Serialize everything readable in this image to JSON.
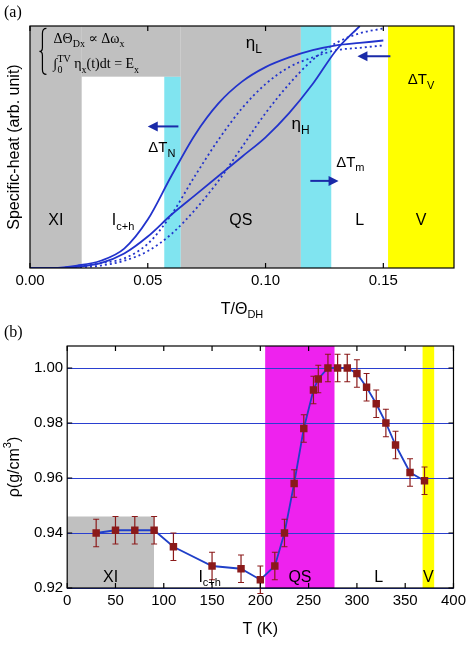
{
  "chart_data": [
    {
      "type": "line",
      "panel": "(a)",
      "x_label": [
        {
          "t": "T/Θ"
        },
        {
          "sub": "DH"
        }
      ],
      "y_label": [
        {
          "t": "Specific-heat (arb. unit)"
        }
      ],
      "xlim": [
        0,
        0.18
      ],
      "xticks": [
        {
          "value": 0,
          "label": "0.00"
        },
        {
          "value": 0.05,
          "label": "0.05"
        },
        {
          "value": 0.1,
          "label": "0.10"
        },
        {
          "value": 0.15,
          "label": "0.15"
        }
      ],
      "ylim": [
        0,
        1
      ],
      "tick_labels": "x",
      "grid": false,
      "bands": [
        {
          "x0": 0,
          "x1": 0.022,
          "color": "#c0c0c0",
          "label": [
            {
              "t": "XI"
            }
          ]
        },
        {
          "x0": 0.022,
          "x1": 0.064,
          "y0": 0.79,
          "color": "#c0c0c0"
        },
        {
          "x0": 0.022,
          "x1": 0.057,
          "y1": 0.79,
          "color": "#ffffff",
          "label": [
            {
              "t": "I"
            },
            {
              "sub": "c+h"
            }
          ]
        },
        {
          "x0": 0.057,
          "x1": 0.064,
          "y1": 0.79,
          "color": "#80e4f0"
        },
        {
          "x0": 0.064,
          "x1": 0.115,
          "color": "#c0c0c0",
          "label": [
            {
              "t": "QS"
            }
          ]
        },
        {
          "x0": 0.115,
          "x1": 0.128,
          "color": "#80e4f0"
        },
        {
          "x0": 0.128,
          "x1": 0.152,
          "color": "#ffffff",
          "label": [
            {
              "t": "L"
            }
          ]
        },
        {
          "x0": 0.152,
          "x1": 0.18,
          "color": "#ffff00",
          "label": [
            {
              "t": "V"
            }
          ]
        }
      ],
      "annotations": [
        {
          "text": [
            {
              "t": "ΔΘ"
            },
            {
              "sub": "Dx"
            },
            {
              "t": " ∝ Δω"
            },
            {
              "sub": "x"
            }
          ]
        },
        {
          "text": [
            {
              "t": "∫"
            },
            {
              "sub": "0"
            },
            {
              "sup": "TV"
            },
            {
              "t": " η"
            },
            {
              "sub": "x"
            },
            {
              "t": "(t)dt = E"
            },
            {
              "sub": "x"
            }
          ]
        },
        {
          "text": [
            {
              "t": "ΔT"
            },
            {
              "sub": "N"
            }
          ]
        },
        {
          "text": [
            {
              "t": "ΔT"
            },
            {
              "sub": "m"
            }
          ]
        },
        {
          "text": [
            {
              "t": "ΔT"
            },
            {
              "sub": "V"
            }
          ]
        }
      ],
      "series": [
        {
          "label": [
            {
              "t": "η"
            },
            {
              "sub": "L"
            }
          ],
          "color": "#2233cc",
          "line_style": "solid",
          "x": [
            0,
            0.01,
            0.02,
            0.03,
            0.04,
            0.05,
            0.06,
            0.07,
            0.08,
            0.09,
            0.1,
            0.11,
            0.12,
            0.13,
            0.14,
            0.15
          ],
          "values": [
            0,
            0,
            0.01,
            0.03,
            0.08,
            0.2,
            0.38,
            0.55,
            0.68,
            0.77,
            0.83,
            0.87,
            0.9,
            0.92,
            0.93,
            0.94
          ]
        },
        {
          "label": [
            {
              "t": "η"
            },
            {
              "sub": "H"
            }
          ],
          "color": "#2233cc",
          "line_style": "solid",
          "x": [
            0,
            0.01,
            0.02,
            0.03,
            0.04,
            0.05,
            0.06,
            0.07,
            0.08,
            0.09,
            0.1,
            0.11,
            0.12,
            0.13,
            0.14
          ],
          "values": [
            0,
            0,
            0.005,
            0.02,
            0.06,
            0.13,
            0.22,
            0.3,
            0.38,
            0.46,
            0.54,
            0.64,
            0.76,
            0.9,
            1
          ]
        },
        {
          "color": "#2233cc",
          "line_style": "dotted",
          "x": [
            0,
            0.01,
            0.02,
            0.03,
            0.04,
            0.05,
            0.06,
            0.07,
            0.08,
            0.09,
            0.1,
            0.11,
            0.12,
            0.13,
            0.14,
            0.15
          ],
          "values": [
            0,
            0,
            0.005,
            0.02,
            0.04,
            0.1,
            0.22,
            0.38,
            0.53,
            0.66,
            0.76,
            0.83,
            0.87,
            0.9,
            0.91,
            0.92
          ]
        },
        {
          "color": "#2233cc",
          "line_style": "dotted",
          "x": [
            0,
            0.01,
            0.02,
            0.03,
            0.04,
            0.05,
            0.06,
            0.07,
            0.08,
            0.09,
            0.1,
            0.11,
            0.12,
            0.13,
            0.14,
            0.15
          ],
          "values": [
            0,
            0,
            0.003,
            0.01,
            0.03,
            0.07,
            0.14,
            0.24,
            0.36,
            0.5,
            0.64,
            0.76,
            0.86,
            0.93,
            0.97,
            0.99
          ]
        }
      ]
    },
    {
      "type": "line",
      "panel": "(b)",
      "x_label": [
        {
          "t": "T (K)"
        }
      ],
      "y_label": [
        {
          "t": "ρ(g/cm"
        },
        {
          "sup": "3"
        },
        {
          "t": ")"
        }
      ],
      "xlim": [
        0,
        400
      ],
      "xticks": [
        0,
        50,
        100,
        150,
        200,
        250,
        300,
        350,
        400
      ],
      "ylim": [
        0.92,
        1.008
      ],
      "yticks": [
        0.92,
        0.94,
        0.96,
        0.98,
        {
          "value": 1,
          "label": "1.00"
        }
      ],
      "grid": "y",
      "bands": [
        {
          "x0": 0,
          "x1": 90,
          "y1": 0.946,
          "color": "#c0c0c0",
          "label": [
            {
              "t": "XI"
            }
          ]
        },
        {
          "x0": 90,
          "x1": 205,
          "color": "#ffffff",
          "label": [
            {
              "t": "I"
            },
            {
              "sub": "c+h"
            }
          ]
        },
        {
          "x0": 205,
          "x1": 277,
          "color": "#ee22ee",
          "label": [
            {
              "t": "QS"
            }
          ]
        },
        {
          "x0": 277,
          "x1": 368,
          "color": "#ffffff",
          "label": [
            {
              "t": "L"
            }
          ]
        },
        {
          "x0": 368,
          "x1": 380,
          "color": "#ffff00",
          "label": [
            {
              "t": "V"
            }
          ]
        }
      ],
      "annotations": [],
      "series": [
        {
          "color": "#2040c8",
          "marker": "square",
          "line_style": "solid",
          "x": [
            30,
            50,
            70,
            90,
            110,
            150,
            180,
            200,
            215,
            225,
            235,
            245,
            255,
            260,
            270,
            280,
            290,
            300,
            310,
            320,
            330,
            340,
            355,
            370
          ],
          "values": [
            0.94,
            0.941,
            0.941,
            0.941,
            0.935,
            0.928,
            0.927,
            0.923,
            0.928,
            0.94,
            0.958,
            0.978,
            0.992,
            0.996,
            1,
            1,
            1,
            0.998,
            0.993,
            0.987,
            0.98,
            0.972,
            0.962,
            0.959
          ],
          "errors": [
            0.005,
            0.005,
            0.005,
            0.005,
            0.005,
            0.005,
            0.005,
            0.005,
            0.005,
            0.005,
            0.005,
            0.005,
            0.005,
            0.005,
            0.005,
            0.005,
            0.005,
            0.005,
            0.005,
            0.005,
            0.005,
            0.005,
            0.005,
            0.005
          ]
        }
      ]
    }
  ]
}
